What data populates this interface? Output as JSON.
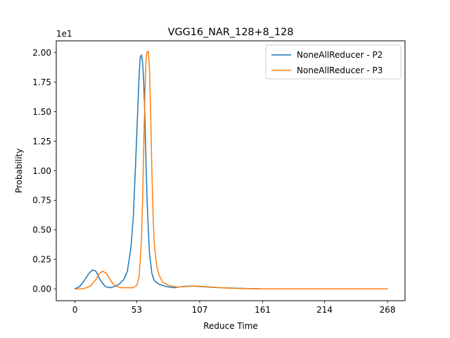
{
  "chart_data": {
    "type": "line",
    "title": "VGG16_NAR_128+8_128",
    "xlabel": "Reduce Time",
    "ylabel": "Probability",
    "y_offset_label": "1e1",
    "xlim": [
      -16,
      283
    ],
    "ylim": [
      -0.1,
      2.1
    ],
    "x_ticks": [
      0,
      53,
      107,
      161,
      214,
      268
    ],
    "x_tick_labels": [
      "0",
      "53",
      "107",
      "161",
      "214",
      "268"
    ],
    "y_ticks": [
      0.0,
      0.25,
      0.5,
      0.75,
      1.0,
      1.25,
      1.5,
      1.75,
      2.0
    ],
    "y_tick_labels": [
      "0.00",
      "0.25",
      "0.50",
      "0.75",
      "1.00",
      "1.25",
      "1.50",
      "1.75",
      "2.00"
    ],
    "grid": false,
    "legend_position": "top-right",
    "series": [
      {
        "name": "NoneAllReducer - P2",
        "color": "#1f77b4",
        "x": [
          0,
          4,
          8,
          12,
          15,
          18,
          22,
          26,
          30,
          34,
          38,
          42,
          45,
          48,
          50,
          52,
          54,
          55,
          56,
          57,
          58,
          59,
          60,
          61,
          62,
          63,
          64,
          66,
          68,
          72,
          78,
          85,
          92,
          100,
          107,
          115,
          125,
          140,
          160,
          200,
          240,
          268
        ],
        "y": [
          0.0,
          0.02,
          0.07,
          0.13,
          0.16,
          0.15,
          0.07,
          0.02,
          0.01,
          0.02,
          0.04,
          0.08,
          0.15,
          0.35,
          0.6,
          1.05,
          1.55,
          1.8,
          1.96,
          1.98,
          1.92,
          1.75,
          1.45,
          1.05,
          0.72,
          0.48,
          0.3,
          0.13,
          0.07,
          0.04,
          0.02,
          0.01,
          0.02,
          0.025,
          0.02,
          0.015,
          0.01,
          0.005,
          0.0,
          0.0,
          0.0,
          0.0
        ]
      },
      {
        "name": "NoneAllReducer - P3",
        "color": "#ff7f0e",
        "x": [
          0,
          6,
          10,
          14,
          18,
          21,
          24,
          27,
          30,
          33,
          36,
          40,
          45,
          50,
          53,
          55,
          57,
          58,
          59,
          60,
          61,
          62,
          63,
          64,
          65,
          66,
          67,
          68,
          70,
          72,
          75,
          80,
          88,
          95,
          102,
          110,
          118,
          125,
          135,
          160,
          200,
          240,
          268
        ],
        "y": [
          0.0,
          0.0,
          0.01,
          0.03,
          0.08,
          0.13,
          0.15,
          0.13,
          0.08,
          0.04,
          0.02,
          0.01,
          0.01,
          0.01,
          0.03,
          0.1,
          0.4,
          0.75,
          1.2,
          1.65,
          1.95,
          2.01,
          2.01,
          1.85,
          1.45,
          1.0,
          0.62,
          0.38,
          0.2,
          0.12,
          0.06,
          0.03,
          0.015,
          0.02,
          0.025,
          0.02,
          0.015,
          0.01,
          0.005,
          0.0,
          0.0,
          0.0,
          0.0
        ]
      }
    ]
  }
}
